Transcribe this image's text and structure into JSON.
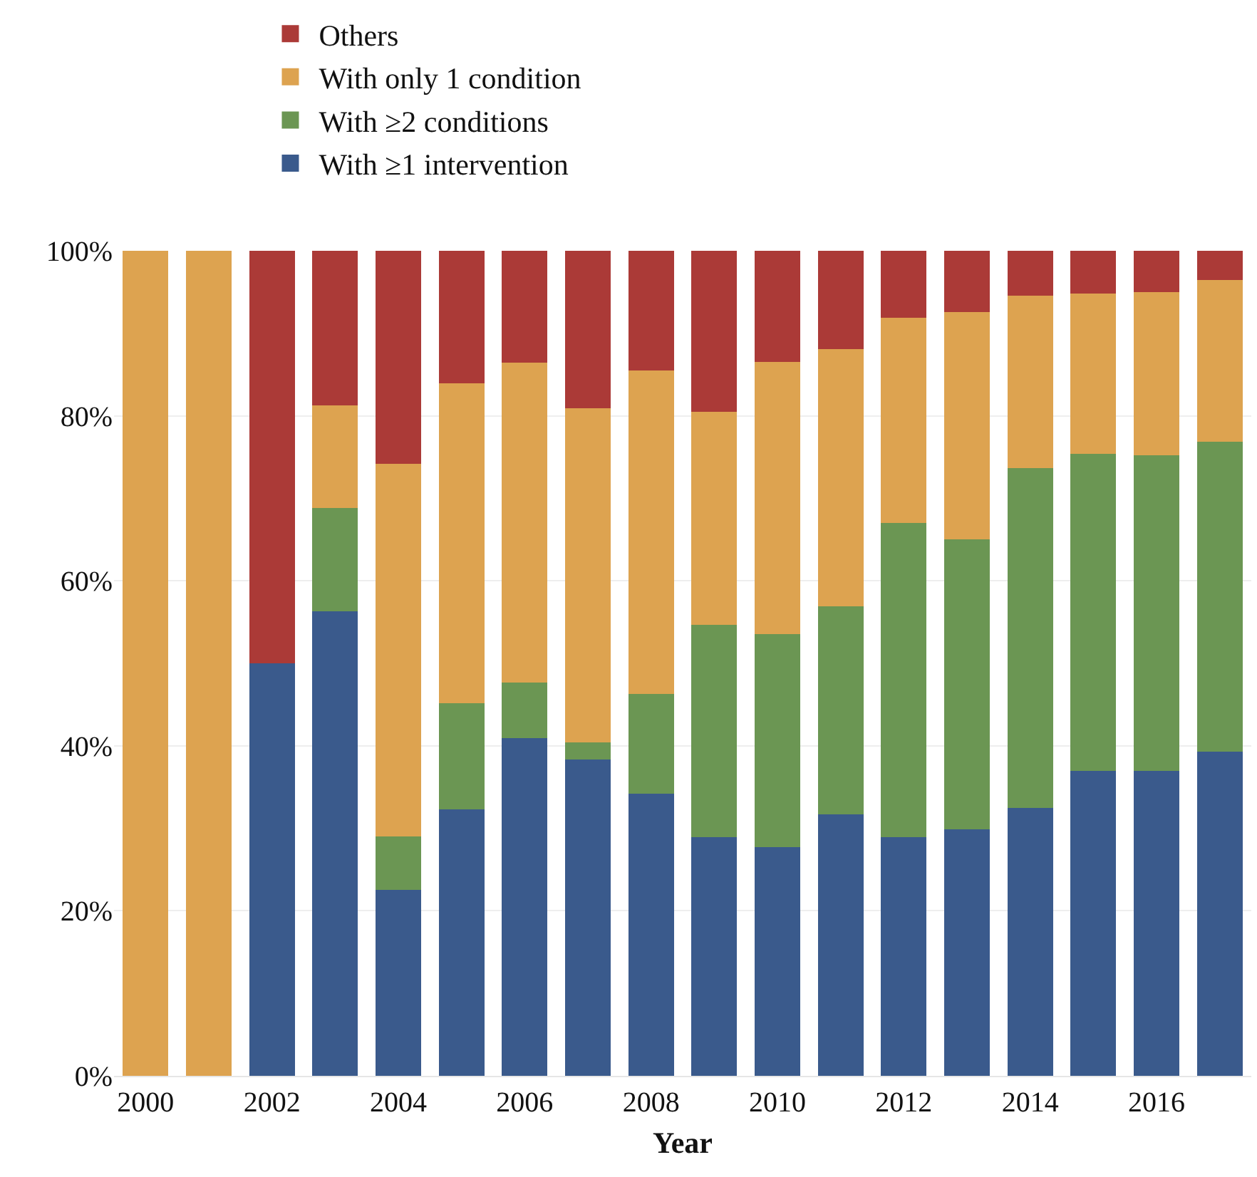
{
  "chart_data": {
    "type": "bar",
    "stacked": true,
    "xlabel": "Year",
    "x": [
      2000,
      2001,
      2002,
      2003,
      2004,
      2005,
      2006,
      2007,
      2008,
      2009,
      2010,
      2011,
      2012,
      2013,
      2014,
      2015,
      2016,
      2017
    ],
    "series": [
      {
        "name": "With ≥1 intervention",
        "color": "#3a5a8c",
        "values": [
          0,
          0,
          50,
          56.3,
          22.5,
          32.3,
          40.9,
          38.3,
          34.2,
          28.9,
          27.7,
          31.7,
          28.9,
          29.9,
          32.5,
          37.0,
          37.0,
          39.3
        ]
      },
      {
        "name": "With ≥2 conditions",
        "color": "#6b9653",
        "values": [
          0,
          0,
          0,
          12.5,
          6.5,
          12.9,
          6.8,
          2.1,
          12.1,
          25.8,
          25.8,
          25.2,
          38.1,
          35.1,
          41.2,
          38.4,
          38.2,
          37.6
        ]
      },
      {
        "name": "With only 1 condition",
        "color": "#dda350",
        "values": [
          100,
          100,
          0,
          12.5,
          45.2,
          38.7,
          38.7,
          40.5,
          39.2,
          25.8,
          33.0,
          31.2,
          24.9,
          27.6,
          20.9,
          19.4,
          19.8,
          19.6
        ]
      },
      {
        "name": "Others",
        "color": "#ab3a37",
        "values": [
          0,
          0,
          50,
          18.7,
          25.8,
          16.1,
          13.6,
          19.1,
          14.5,
          19.5,
          13.5,
          11.9,
          8.1,
          7.4,
          5.4,
          5.2,
          5.0,
          3.5
        ]
      }
    ],
    "xlim": [
      1999.5,
      2017.5
    ],
    "xticks": [
      2000,
      2002,
      2004,
      2006,
      2008,
      2010,
      2012,
      2014,
      2016
    ],
    "ylim": [
      0,
      100
    ],
    "yticks": [
      {
        "value": 0,
        "label": "0%"
      },
      {
        "value": 20,
        "label": "20%"
      },
      {
        "value": 40,
        "label": "40%"
      },
      {
        "value": 60,
        "label": "60%"
      },
      {
        "value": 80,
        "label": "80%"
      },
      {
        "value": 100,
        "label": "100%"
      }
    ],
    "grid": "y",
    "legend": "top left"
  }
}
